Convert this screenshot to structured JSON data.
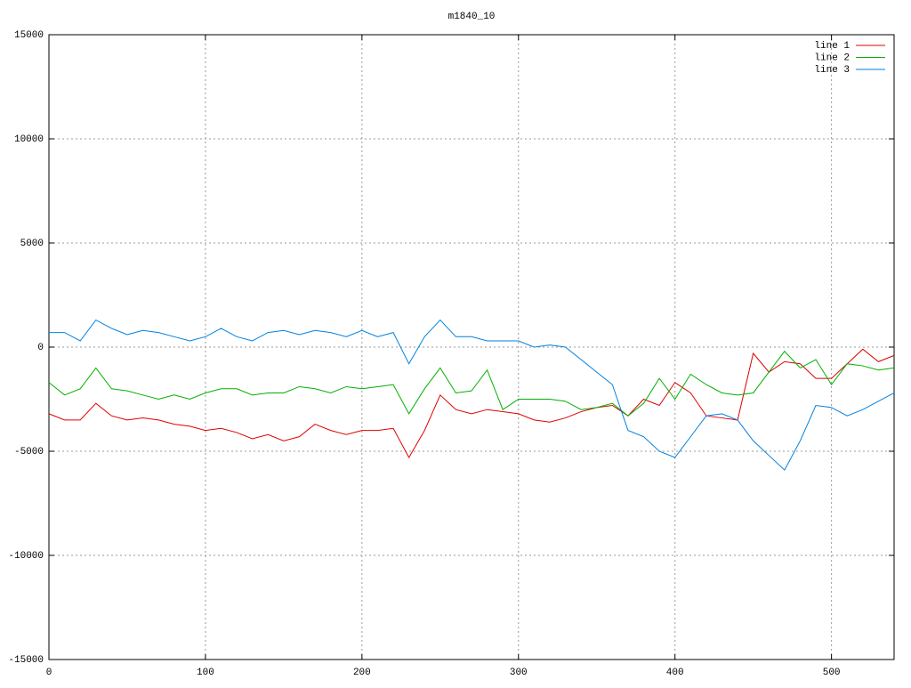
{
  "chart_data": {
    "type": "line",
    "title": "m1840_10",
    "x": [
      0,
      10,
      20,
      30,
      40,
      50,
      60,
      70,
      80,
      90,
      100,
      110,
      120,
      130,
      140,
      150,
      160,
      170,
      180,
      190,
      200,
      210,
      220,
      230,
      240,
      250,
      260,
      270,
      280,
      290,
      300,
      310,
      320,
      330,
      340,
      350,
      360,
      370,
      380,
      390,
      400,
      410,
      420,
      430,
      440,
      450,
      460,
      470,
      480,
      490,
      500,
      510,
      520,
      530,
      540
    ],
    "series": [
      {
        "name": "line 1",
        "color": "#e00000",
        "values": [
          -3200,
          -3500,
          -3500,
          -2700,
          -3300,
          -3500,
          -3400,
          -3500,
          -3700,
          -3800,
          -4000,
          -3900,
          -4100,
          -4400,
          -4200,
          -4500,
          -4300,
          -3700,
          -4000,
          -4200,
          -4000,
          -4000,
          -3900,
          -5300,
          -4000,
          -2300,
          -3000,
          -3200,
          -3000,
          -3100,
          -3200,
          -3500,
          -3600,
          -3400,
          -3100,
          -2900,
          -2800,
          -3300,
          -2500,
          -2800,
          -1700,
          -2200,
          -3300,
          -3400,
          -3500,
          -300,
          -1200,
          -700,
          -800,
          -1500,
          -1500,
          -800,
          -100,
          -700,
          -400
        ]
      },
      {
        "name": "line 2",
        "color": "#00b000",
        "values": [
          -1700,
          -2300,
          -2000,
          -1000,
          -2000,
          -2100,
          -2300,
          -2500,
          -2300,
          -2500,
          -2200,
          -2000,
          -2000,
          -2300,
          -2200,
          -2200,
          -1900,
          -2000,
          -2200,
          -1900,
          -2000,
          -1900,
          -1800,
          -3200,
          -2000,
          -1000,
          -2200,
          -2100,
          -1100,
          -3000,
          -2500,
          -2500,
          -2500,
          -2600,
          -3000,
          -2900,
          -2700,
          -3300,
          -2700,
          -1500,
          -2500,
          -1300,
          -1800,
          -2200,
          -2300,
          -2200,
          -1200,
          -200,
          -1000,
          -600,
          -1800,
          -800,
          -900,
          -1100,
          -1000
        ]
      },
      {
        "name": "line 3",
        "color": "#0080e0",
        "values": [
          700,
          700,
          300,
          1300,
          900,
          600,
          800,
          700,
          500,
          300,
          500,
          900,
          500,
          300,
          700,
          800,
          600,
          800,
          700,
          500,
          800,
          500,
          700,
          -800,
          500,
          1300,
          500,
          500,
          300,
          300,
          300,
          0,
          100,
          0,
          -600,
          -1200,
          -1800,
          -4000,
          -4300,
          -5000,
          -5300,
          -4300,
          -3300,
          -3200,
          -3500,
          -4500,
          -5200,
          -5900,
          -4500,
          -2800,
          -2900,
          -3300,
          -3000,
          -2600,
          -2200
        ]
      }
    ],
    "xlim": [
      0,
      540
    ],
    "xticks": [
      0,
      100,
      200,
      300,
      400,
      500
    ],
    "ylim": [
      -15000,
      15000
    ],
    "yticks": [
      -15000,
      -10000,
      -5000,
      0,
      5000,
      10000,
      15000
    ],
    "grid": true,
    "legend": "top-right"
  }
}
